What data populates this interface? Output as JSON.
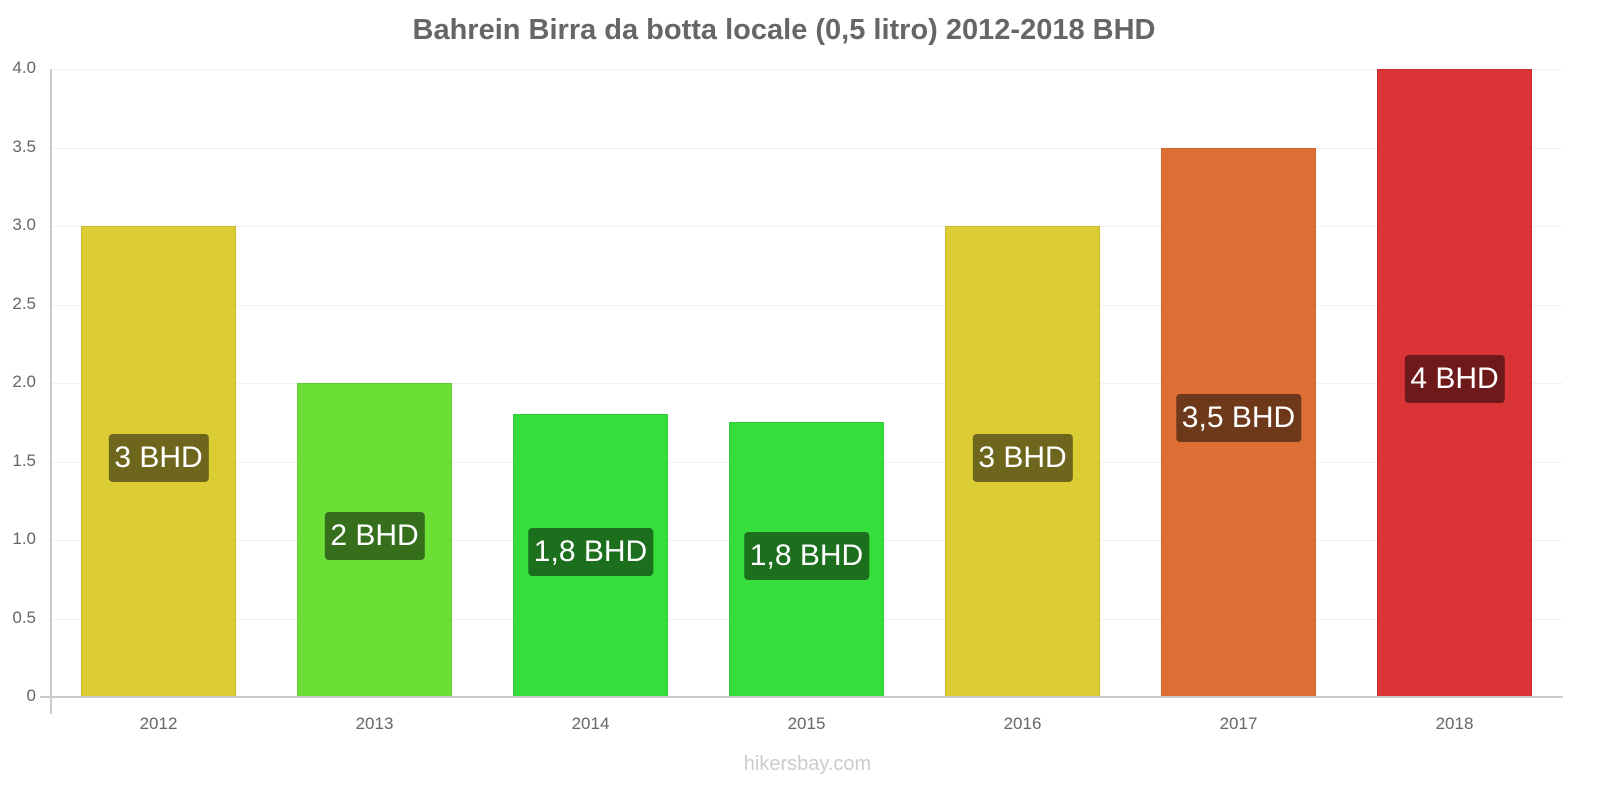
{
  "chart_data": {
    "type": "bar",
    "title": "Bahrein Birra da botta locale (0,5 litro) 2012-2018 BHD",
    "xlabel": "",
    "ylabel": "",
    "ylim": [
      0,
      4.0
    ],
    "yticks": [
      "0",
      "0.5",
      "1.0",
      "1.5",
      "2.0",
      "2.5",
      "3.0",
      "3.5",
      "4.0"
    ],
    "grid": true,
    "legend": null,
    "categories": [
      "2012",
      "2013",
      "2014",
      "2015",
      "2016",
      "2017",
      "2018"
    ],
    "values": [
      3.0,
      2.0,
      1.8,
      1.75,
      3.0,
      3.5,
      4.0
    ],
    "data_labels": [
      "3 BHD",
      "2 BHD",
      "1,8 BHD",
      "1,8 BHD",
      "3 BHD",
      "3,5 BHD",
      "4 BHD"
    ],
    "bar_colors": [
      "#dccc33",
      "#6cdf37",
      "#35de3a",
      "#35de3a",
      "#dccc33",
      "#dd6f35",
      "#db3436"
    ],
    "label_colors": [
      "#6e661d",
      "#366f1b",
      "#1b6f1d",
      "#1b6f1d",
      "#6e661d",
      "#6e381a",
      "#6e1a1b"
    ]
  },
  "watermark": "hikersbay.com"
}
